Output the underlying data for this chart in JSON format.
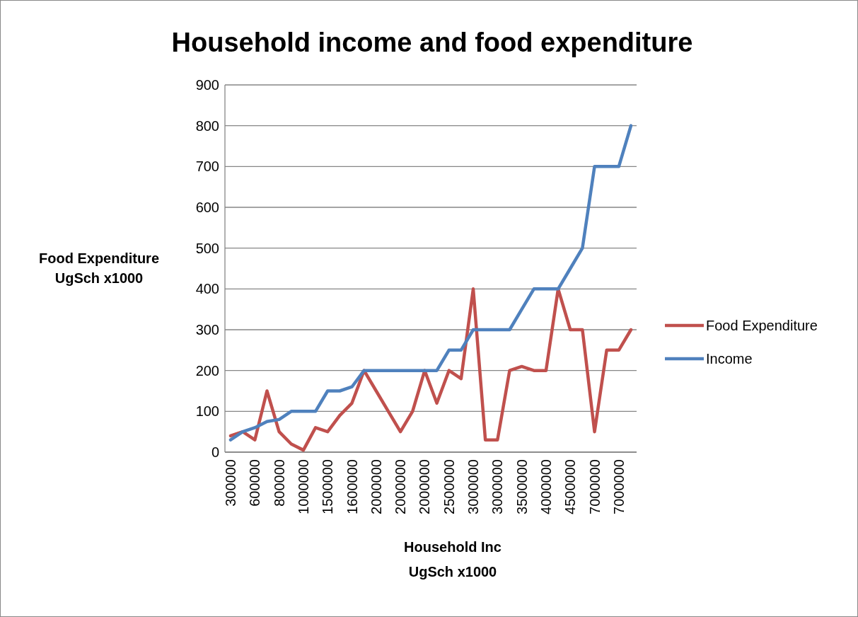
{
  "chart_data": {
    "type": "line",
    "title": "Household income and food expenditure",
    "xlabel": "Household Inc\nUgSch x1000",
    "ylabel": "Food Expenditure\nUgSch x1000",
    "categories": [
      "300000",
      null,
      "600000",
      null,
      "800000",
      null,
      "1000000",
      null,
      "1500000",
      null,
      "1600000",
      null,
      "2000000",
      null,
      "2000000",
      null,
      "2000000",
      null,
      "2500000",
      null,
      "3000000",
      null,
      "3000000",
      null,
      "3500000",
      null,
      "4000000",
      null,
      "4500000",
      null,
      "7000000",
      null,
      "7000000",
      null
    ],
    "series": [
      {
        "name": "Food Expenditure",
        "color": "#c0504d",
        "values": [
          40,
          50,
          30,
          150,
          50,
          20,
          5,
          60,
          50,
          90,
          120,
          200,
          150,
          100,
          50,
          100,
          200,
          120,
          200,
          180,
          400,
          30,
          30,
          200,
          210,
          200,
          200,
          400,
          300,
          300,
          50,
          250,
          250,
          300
        ]
      },
      {
        "name": "Income",
        "color": "#4f81bd",
        "values": [
          30,
          50,
          60,
          75,
          80,
          100,
          100,
          100,
          150,
          150,
          160,
          200,
          200,
          200,
          200,
          200,
          200,
          200,
          250,
          250,
          300,
          300,
          300,
          300,
          350,
          400,
          400,
          400,
          450,
          500,
          700,
          700,
          700,
          800
        ]
      }
    ],
    "ylim": [
      0,
      900
    ],
    "yticks": [
      0,
      100,
      200,
      300,
      400,
      500,
      600,
      700,
      800,
      900
    ],
    "grid": "y",
    "legend": "right",
    "line_style": "solid",
    "marker": "none"
  }
}
